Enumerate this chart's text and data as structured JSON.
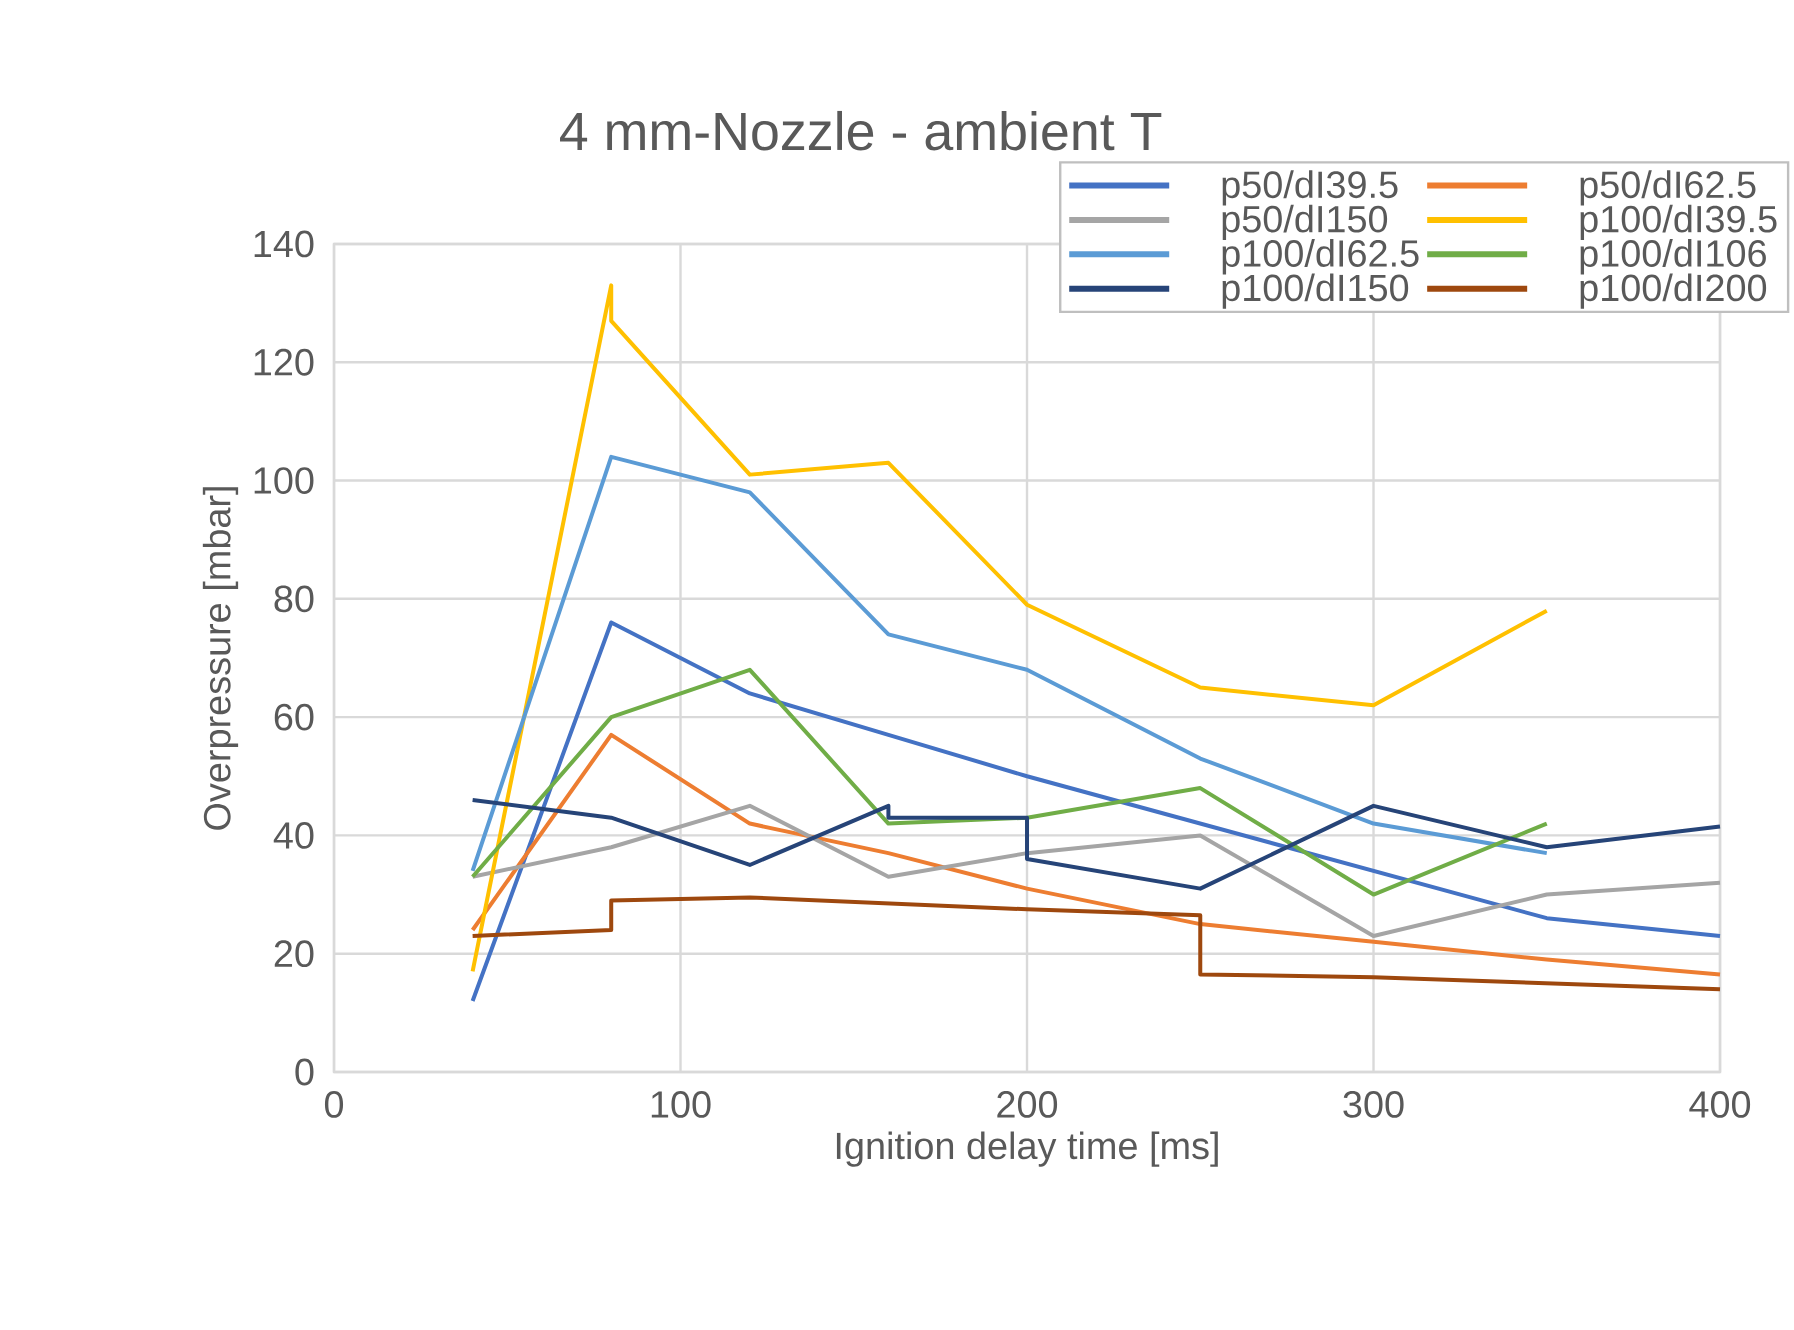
{
  "chart_data": {
    "type": "line",
    "title": "4 mm-Nozzle - ambient T",
    "xlabel": "Ignition delay time [ms]",
    "ylabel": "Overpressure  [mbar]",
    "xlim": [
      0,
      400
    ],
    "ylim": [
      0,
      140
    ],
    "xticks": [
      0,
      100,
      200,
      300,
      400
    ],
    "yticks": [
      0,
      20,
      40,
      60,
      80,
      100,
      120,
      140
    ],
    "grid": true,
    "legend": "top right",
    "series": [
      {
        "name": "p50/dI39.5",
        "color": "#4472c4",
        "x": [
          40,
          80,
          120,
          160,
          200,
          250,
          300,
          350,
          400
        ],
        "values": [
          12,
          76,
          64,
          57,
          50,
          42,
          34,
          26,
          23
        ]
      },
      {
        "name": "p50/dI62.5",
        "color": "#ed7d31",
        "x": [
          40,
          80,
          120,
          160,
          200,
          250,
          300,
          350,
          400
        ],
        "values": [
          24,
          57,
          42,
          37,
          31,
          25,
          22,
          19,
          16.5
        ]
      },
      {
        "name": "p50/dI150",
        "color": "#a5a5a5",
        "x": [
          40,
          80,
          120,
          160,
          200,
          250,
          300,
          350,
          400
        ],
        "values": [
          33,
          38,
          45,
          33,
          37,
          40,
          23,
          30,
          32
        ]
      },
      {
        "name": "p100/dI39.5",
        "color": "#ffc000",
        "x": [
          40,
          80,
          80,
          120,
          160,
          200,
          250,
          300,
          350
        ],
        "values": [
          17,
          133,
          127,
          101,
          103,
          79,
          65,
          62,
          78
        ]
      },
      {
        "name": "p100/dI62.5",
        "color": "#5b9bd5",
        "x": [
          40,
          80,
          120,
          160,
          200,
          250,
          300,
          350
        ],
        "values": [
          34,
          104,
          98,
          74,
          68,
          53,
          42,
          37
        ]
      },
      {
        "name": "p100/dI106",
        "color": "#70ad47",
        "x": [
          40,
          80,
          120,
          160,
          200,
          250,
          300,
          350
        ],
        "values": [
          33,
          60,
          68,
          42,
          43,
          48,
          30,
          42
        ]
      },
      {
        "name": "p100/dI150",
        "color": "#264478",
        "x": [
          40,
          80,
          120,
          160,
          160,
          200,
          200,
          250,
          300,
          350,
          400
        ],
        "values": [
          46,
          43,
          35,
          45,
          43,
          43,
          36,
          31,
          45,
          38,
          41.5
        ]
      },
      {
        "name": "p100/dI200",
        "color": "#9e480e",
        "x": [
          40,
          80,
          80,
          120,
          160,
          200,
          250,
          250,
          300,
          350,
          400
        ],
        "values": [
          23,
          24,
          29,
          29.5,
          28.5,
          27.5,
          26.5,
          16.5,
          16,
          15,
          14
        ]
      }
    ]
  }
}
